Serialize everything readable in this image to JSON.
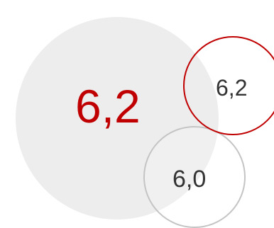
{
  "bubbles": {
    "main": {
      "value": "6,2",
      "fill": "#ededed",
      "text_color": "#c00000"
    },
    "comparison_red": {
      "value": "6,2",
      "stroke": "#c00000",
      "text_color": "#333333"
    },
    "comparison_grey": {
      "value": "6,0",
      "stroke": "#c4c4c4",
      "text_color": "#333333"
    }
  }
}
